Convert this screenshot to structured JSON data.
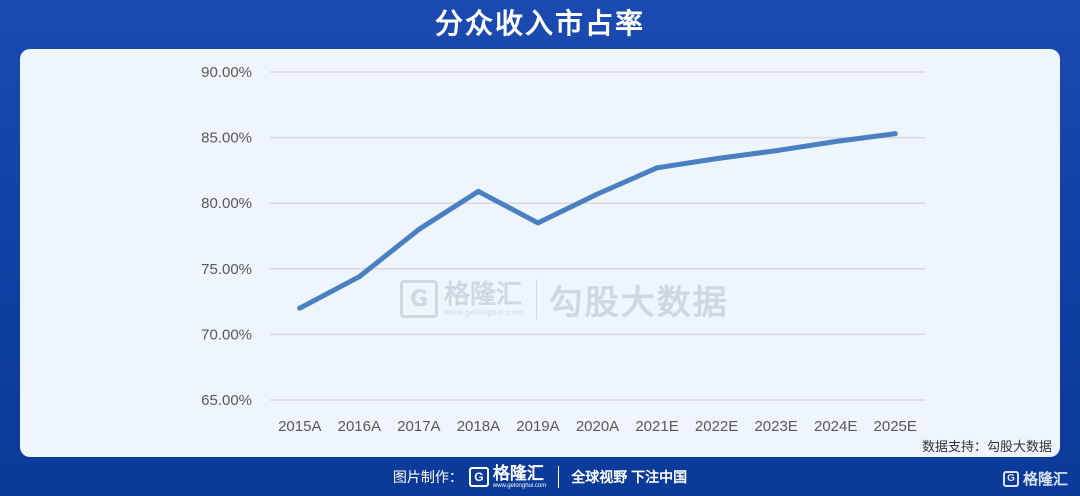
{
  "header": {
    "title": "分众收入市占率"
  },
  "watermark": {
    "logo_glyph": "G",
    "brand": "格隆汇",
    "domain": "www.gelonghui.com",
    "text": "勾股大数据"
  },
  "source": {
    "text": "数据支持：勾股大数据"
  },
  "footer": {
    "prefix": "图片制作：",
    "logo_glyph": "G",
    "brand": "格隆汇",
    "domain": "www.gelonghui.com",
    "slogan": "全球视野 下注中国"
  },
  "corner": {
    "logo_glyph": "G",
    "brand": "格隆汇"
  },
  "colors": {
    "background": "#1345ab",
    "card": "#eef5fc",
    "line": "#4a7fc1",
    "grid": "#d9d9d9",
    "axis_text": "#595959"
  },
  "chart_data": {
    "type": "line",
    "title": "分众收入市占率",
    "categories": [
      "2015A",
      "2016A",
      "2017A",
      "2018A",
      "2019A",
      "2020A",
      "2021E",
      "2022E",
      "2023E",
      "2024E",
      "2025E"
    ],
    "values": [
      72.0,
      74.4,
      78.0,
      80.9,
      78.5,
      80.7,
      82.7,
      83.4,
      84.0,
      84.7,
      85.3
    ],
    "yticks": [
      "90.00%",
      "85.00%",
      "80.00%",
      "75.00%",
      "70.00%",
      "65.00%"
    ],
    "ylim": [
      65,
      90
    ],
    "grid": true,
    "legend": "none"
  }
}
